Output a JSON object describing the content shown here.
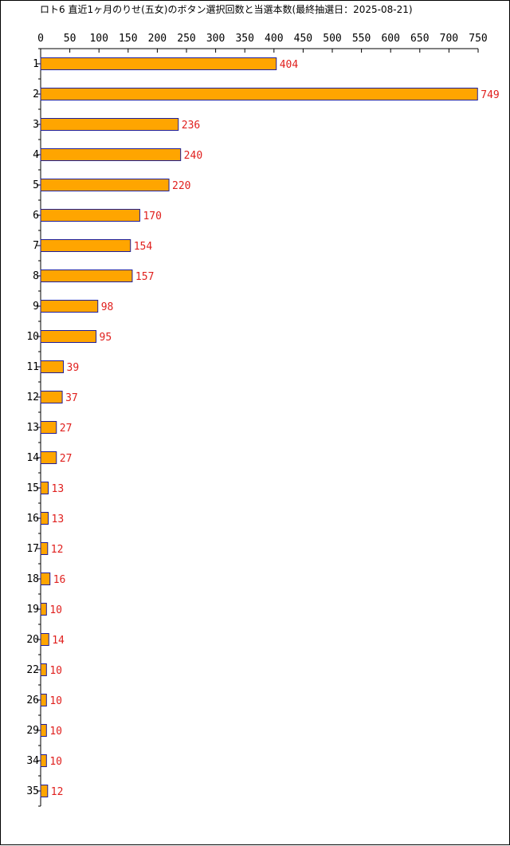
{
  "chart_data": {
    "type": "bar",
    "orientation": "horizontal",
    "title": "ロト6 直近1ヶ月のりせ(五女)のボタン選択回数と当選本数(最終抽選日：2025-08-21)",
    "categories": [
      "1",
      "2",
      "3",
      "4",
      "5",
      "6",
      "7",
      "8",
      "9",
      "10",
      "11",
      "12",
      "13",
      "14",
      "15",
      "16",
      "17",
      "18",
      "19",
      "20",
      "22",
      "26",
      "29",
      "34",
      "35"
    ],
    "values": [
      404,
      749,
      236,
      240,
      220,
      170,
      154,
      157,
      98,
      95,
      39,
      37,
      27,
      27,
      13,
      13,
      12,
      16,
      10,
      14,
      10,
      10,
      10,
      10,
      12
    ],
    "xlim": [
      0,
      750
    ],
    "xticks": [
      0,
      50,
      100,
      150,
      200,
      250,
      300,
      350,
      400,
      450,
      500,
      550,
      600,
      650,
      700,
      750
    ],
    "x_axis_position": "top",
    "grid": false,
    "legend": "none",
    "colors": {
      "bar_fill": "#FFA500",
      "bar_stroke": "#1E1E9A",
      "value_label": "#E0201E",
      "axis": "#000000"
    }
  }
}
